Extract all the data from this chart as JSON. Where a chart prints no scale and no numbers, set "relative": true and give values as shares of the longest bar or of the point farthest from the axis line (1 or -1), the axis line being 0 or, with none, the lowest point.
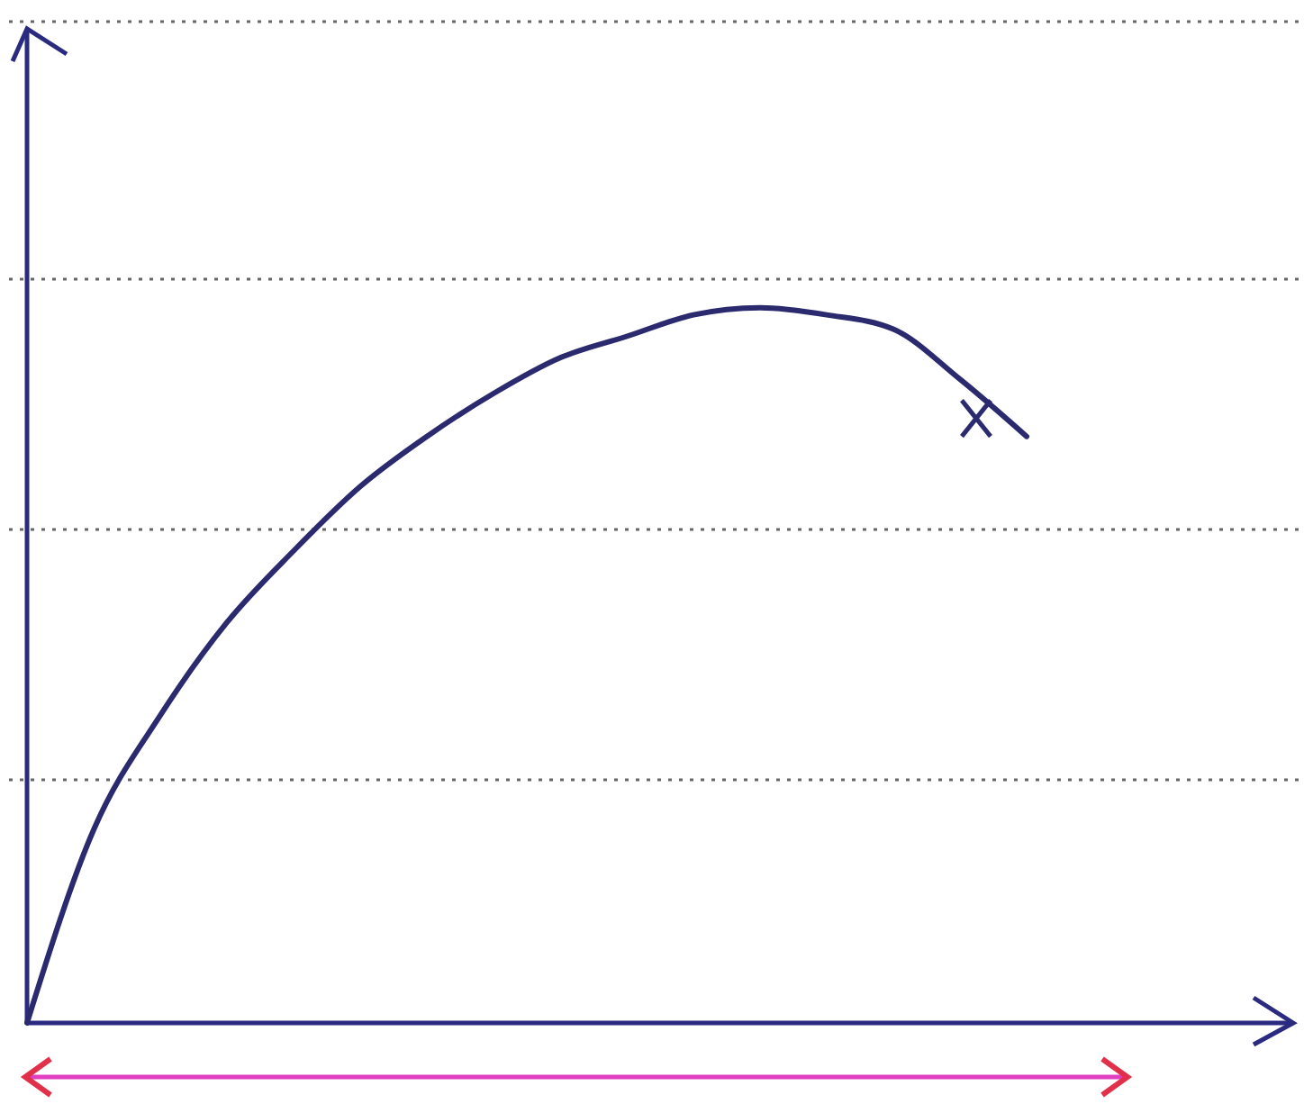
{
  "chart_data": {
    "type": "line",
    "relative": true,
    "categories": [
      null,
      null,
      null,
      null,
      null,
      null,
      null,
      null,
      null,
      null,
      null,
      null,
      null,
      null,
      null,
      null
    ],
    "series": [
      {
        "color": "#2b2a6e",
        "values": [
          0,
          0.27,
          0.43,
          0.56,
          0.66,
          0.75,
          0.82,
          0.88,
          0.93,
          0.96,
          0.99,
          1.0,
          0.99,
          0.97,
          0.9,
          0.82
        ]
      }
    ],
    "ref_lines": [
      {
        "axis": "y",
        "value": 0.34,
        "color": "#666666",
        "line_style": "dotted"
      },
      {
        "axis": "y",
        "value": 0.69,
        "color": "#666666",
        "line_style": "dotted"
      },
      {
        "axis": "y",
        "value": 1.04,
        "color": "#666666",
        "line_style": "dotted"
      },
      {
        "axis": "y",
        "value": 1.4,
        "color": "#666666",
        "line_style": "dotted"
      }
    ],
    "marker": "none",
    "line_style": "solid"
  }
}
